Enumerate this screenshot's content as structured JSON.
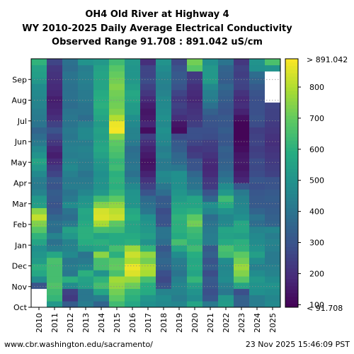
{
  "chart_data": {
    "type": "heatmap",
    "title_lines": [
      "OH4 Old River at Highway 4",
      "WY 2010-2025 Daily Average Electrical Conductivity",
      "Observed Range 91.708 : 891.042 uS/cm"
    ],
    "x_categories": [
      "2010",
      "2011",
      "2012",
      "2013",
      "2014",
      "2015",
      "2016",
      "2017",
      "2018",
      "2019",
      "2020",
      "2021",
      "2022",
      "2023",
      "2024",
      "2025"
    ],
    "y_categories": [
      "Oct",
      "Nov",
      "Dec",
      "Jan",
      "Feb",
      "Mar",
      "Apr",
      "May",
      "Jun",
      "Jul",
      "Aug",
      "Sep"
    ],
    "colorbar": {
      "colormap": "viridis",
      "min": 91.708,
      "max": 891.042,
      "ticks": [
        100,
        200,
        300,
        400,
        500,
        600,
        700,
        800
      ],
      "tick_labels": [
        "100",
        "200",
        "300",
        "400",
        "500",
        "600",
        "700",
        "800"
      ],
      "max_label": "> 891.042",
      "min_label": "< 91.708"
    },
    "grid": "dotted horizontal lines at month boundaries",
    "values": [
      [
        null,
        520,
        330,
        430,
        350,
        640,
        570,
        490,
        470,
        460,
        560,
        420,
        530,
        340,
        430,
        470
      ],
      [
        null,
        620,
        230,
        410,
        430,
        690,
        600,
        510,
        480,
        430,
        480,
        310,
        520,
        340,
        430,
        460
      ],
      [
        null,
        640,
        250,
        410,
        560,
        720,
        620,
        580,
        450,
        450,
        500,
        290,
        410,
        290,
        490,
        480
      ],
      [
        300,
        670,
        480,
        540,
        650,
        760,
        710,
        590,
        300,
        460,
        540,
        310,
        440,
        560,
        500,
        500
      ],
      [
        480,
        650,
        600,
        550,
        610,
        780,
        770,
        650,
        270,
        440,
        620,
        320,
        480,
        680,
        520,
        480
      ],
      [
        570,
        650,
        410,
        600,
        500,
        660,
        850,
        790,
        290,
        400,
        560,
        280,
        470,
        740,
        480,
        450
      ],
      [
        600,
        650,
        430,
        460,
        650,
        700,
        870,
        800,
        340,
        420,
        580,
        330,
        460,
        770,
        440,
        440
      ],
      [
        530,
        660,
        410,
        420,
        650,
        690,
        790,
        720,
        360,
        430,
        570,
        300,
        480,
        720,
        480,
        420
      ],
      [
        510,
        570,
        470,
        400,
        750,
        600,
        830,
        760,
        340,
        480,
        590,
        340,
        640,
        690,
        540,
        420
      ],
      [
        490,
        430,
        450,
        540,
        560,
        650,
        770,
        610,
        310,
        560,
        640,
        320,
        660,
        610,
        500,
        440
      ],
      [
        560,
        390,
        450,
        590,
        600,
        580,
        600,
        500,
        380,
        650,
        600,
        430,
        580,
        600,
        480,
        450
      ],
      [
        610,
        450,
        520,
        600,
        560,
        580,
        580,
        540,
        400,
        580,
        620,
        430,
        550,
        540,
        470,
        430
      ],
      [
        680,
        380,
        550,
        600,
        650,
        640,
        560,
        520,
        400,
        600,
        640,
        420,
        560,
        570,
        450,
        460
      ],
      [
        740,
        390,
        420,
        580,
        790,
        690,
        560,
        510,
        300,
        600,
        720,
        400,
        470,
        570,
        380,
        350
      ],
      [
        820,
        360,
        380,
        560,
        850,
        830,
        590,
        490,
        300,
        610,
        690,
        380,
        460,
        490,
        400,
        340
      ],
      [
        750,
        320,
        400,
        570,
        840,
        810,
        570,
        410,
        280,
        580,
        600,
        460,
        500,
        470,
        350,
        330
      ],
      [
        540,
        300,
        480,
        520,
        740,
        760,
        510,
        390,
        330,
        560,
        560,
        490,
        580,
        460,
        320,
        320
      ],
      [
        520,
        320,
        420,
        500,
        640,
        690,
        510,
        370,
        320,
        530,
        560,
        360,
        640,
        450,
        320,
        330
      ],
      [
        450,
        330,
        400,
        460,
        520,
        620,
        500,
        300,
        380,
        510,
        450,
        300,
        520,
        420,
        310,
        320
      ],
      [
        420,
        300,
        430,
        430,
        500,
        600,
        470,
        250,
        410,
        490,
        400,
        230,
        480,
        310,
        290,
        300
      ],
      [
        430,
        320,
        420,
        420,
        500,
        610,
        430,
        210,
        460,
        490,
        390,
        220,
        410,
        180,
        310,
        300
      ],
      [
        470,
        260,
        440,
        400,
        490,
        600,
        390,
        170,
        470,
        490,
        360,
        190,
        380,
        160,
        280,
        250
      ],
      [
        520,
        230,
        470,
        430,
        510,
        640,
        410,
        140,
        420,
        410,
        300,
        180,
        350,
        140,
        270,
        240
      ],
      [
        560,
        190,
        450,
        430,
        520,
        620,
        400,
        130,
        420,
        370,
        300,
        190,
        340,
        150,
        280,
        230
      ],
      [
        500,
        160,
        430,
        440,
        550,
        650,
        390,
        150,
        450,
        360,
        240,
        210,
        330,
        140,
        250,
        220
      ],
      [
        470,
        180,
        440,
        450,
        570,
        670,
        380,
        170,
        430,
        330,
        220,
        230,
        340,
        120,
        240,
        210
      ],
      [
        420,
        220,
        430,
        430,
        560,
        690,
        420,
        200,
        460,
        320,
        260,
        240,
        310,
        110,
        260,
        200
      ],
      [
        380,
        260,
        410,
        470,
        540,
        740,
        450,
        240,
        480,
        280,
        290,
        280,
        310,
        100,
        250,
        210
      ],
      [
        350,
        300,
        420,
        470,
        550,
        880,
        450,
        120,
        490,
        120,
        290,
        290,
        330,
        100,
        240,
        220
      ],
      [
        400,
        250,
        400,
        440,
        530,
        870,
        470,
        180,
        470,
        140,
        240,
        300,
        310,
        100,
        280,
        230
      ],
      [
        420,
        200,
        410,
        380,
        560,
        800,
        490,
        150,
        490,
        200,
        220,
        310,
        320,
        130,
        300,
        250
      ],
      [
        430,
        180,
        400,
        400,
        580,
        740,
        530,
        140,
        480,
        230,
        210,
        340,
        300,
        170,
        290,
        250
      ],
      [
        450,
        170,
        380,
        400,
        600,
        720,
        530,
        160,
        470,
        250,
        200,
        390,
        310,
        200,
        290,
        260
      ],
      [
        460,
        160,
        390,
        420,
        590,
        710,
        560,
        190,
        470,
        230,
        180,
        430,
        330,
        190,
        290,
        null
      ],
      [
        470,
        180,
        390,
        420,
        580,
        720,
        570,
        220,
        450,
        260,
        190,
        440,
        340,
        210,
        300,
        null
      ],
      [
        480,
        190,
        390,
        430,
        560,
        740,
        540,
        250,
        440,
        300,
        200,
        470,
        360,
        250,
        320,
        null
      ],
      [
        520,
        200,
        400,
        440,
        560,
        720,
        520,
        280,
        450,
        320,
        230,
        530,
        330,
        260,
        350,
        null
      ],
      [
        540,
        210,
        400,
        440,
        560,
        700,
        510,
        260,
        460,
        320,
        230,
        520,
        340,
        240,
        380,
        null
      ],
      [
        550,
        220,
        380,
        430,
        550,
        680,
        510,
        260,
        480,
        300,
        680,
        520,
        350,
        250,
        490,
        500
      ],
      [
        610,
        260,
        390,
        500,
        520,
        640,
        520,
        200,
        500,
        270,
        720,
        490,
        400,
        220,
        500,
        660
      ]
    ]
  },
  "footer": {
    "source": "www.cbr.washington.edu/sacramento/",
    "timestamp": "23 Nov 2025 15:46:09 PST"
  }
}
